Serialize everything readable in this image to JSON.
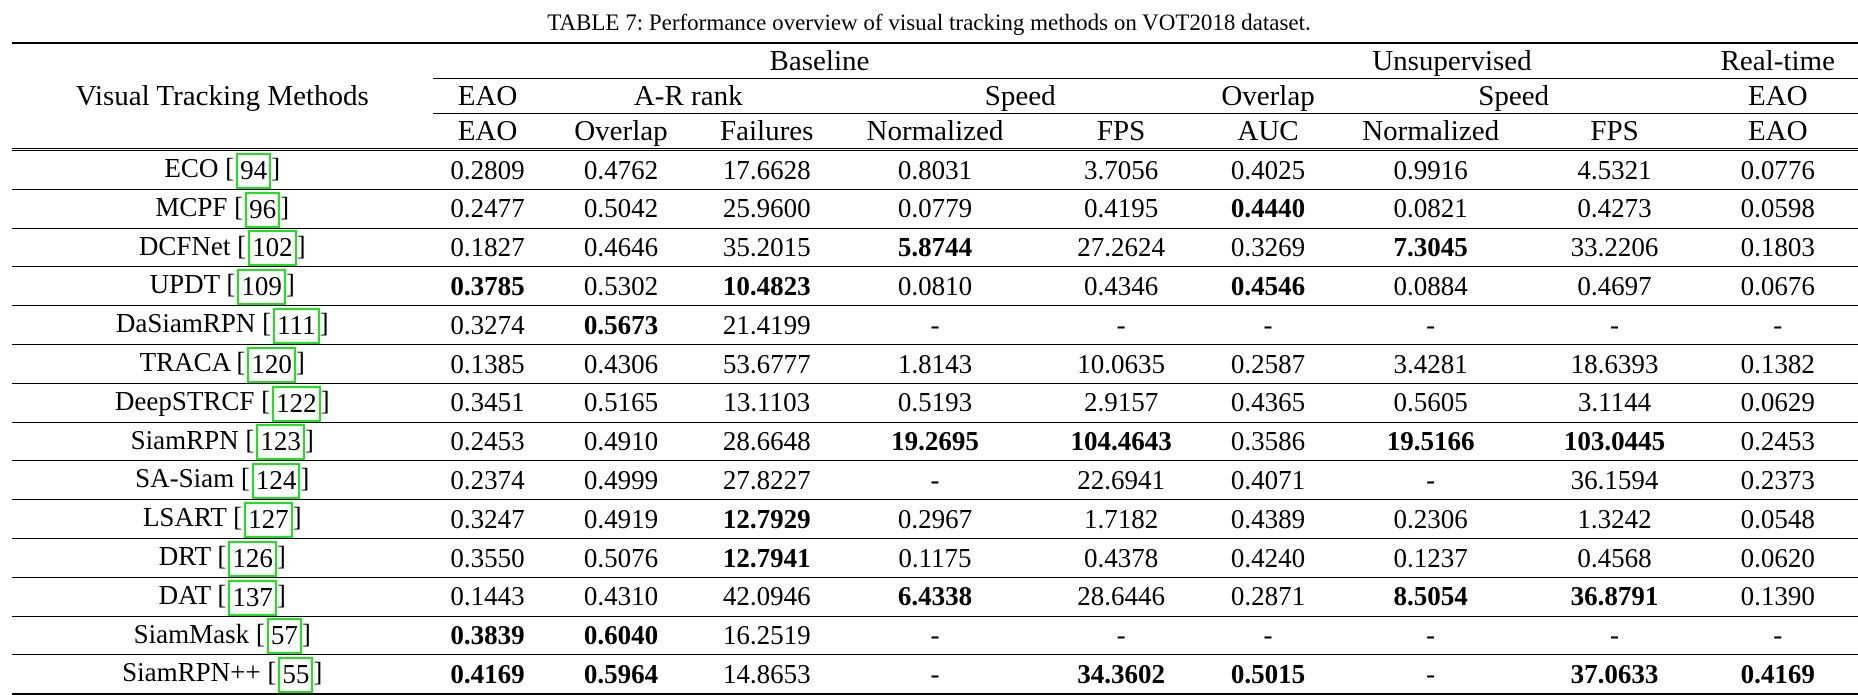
{
  "caption": "TABLE 7: Performance overview of visual tracking methods on VOT2018 dataset.",
  "header": {
    "method_col": "Visual Tracking Methods",
    "groups": {
      "baseline": "Baseline",
      "unsupervised": "Unsupervised",
      "realtime": "Real-time"
    },
    "sub": {
      "eao": "EAO",
      "ar_rank": "A-R rank",
      "speed": "Speed",
      "overlap": "Overlap",
      "speed_u": "Speed",
      "eao_rt": "EAO"
    },
    "cols": [
      "EAO",
      "Overlap",
      "Failures",
      "Normalized",
      "FPS",
      "AUC",
      "Normalized",
      "FPS",
      "EAO"
    ]
  },
  "rows": [
    {
      "name": "ECO",
      "ref": "94",
      "vals": [
        "0.2809",
        "0.4762",
        "17.6628",
        "0.8031",
        "3.7056",
        "0.4025",
        "0.9916",
        "4.5321",
        "0.0776"
      ],
      "bold": []
    },
    {
      "name": "MCPF",
      "ref": "96",
      "vals": [
        "0.2477",
        "0.5042",
        "25.9600",
        "0.0779",
        "0.4195",
        "0.4440",
        "0.0821",
        "0.4273",
        "0.0598"
      ],
      "bold": [
        5
      ]
    },
    {
      "name": "DCFNet",
      "ref": "102",
      "vals": [
        "0.1827",
        "0.4646",
        "35.2015",
        "5.8744",
        "27.2624",
        "0.3269",
        "7.3045",
        "33.2206",
        "0.1803"
      ],
      "bold": [
        3,
        6
      ]
    },
    {
      "name": "UPDT",
      "ref": "109",
      "vals": [
        "0.3785",
        "0.5302",
        "10.4823",
        "0.0810",
        "0.4346",
        "0.4546",
        "0.0884",
        "0.4697",
        "0.0676"
      ],
      "bold": [
        0,
        2,
        5
      ]
    },
    {
      "name": "DaSiamRPN",
      "ref": "111",
      "vals": [
        "0.3274",
        "0.5673",
        "21.4199",
        "-",
        "-",
        "-",
        "-",
        "-",
        "-"
      ],
      "bold": [
        1
      ]
    },
    {
      "name": "TRACA",
      "ref": "120",
      "vals": [
        "0.1385",
        "0.4306",
        "53.6777",
        "1.8143",
        "10.0635",
        "0.2587",
        "3.4281",
        "18.6393",
        "0.1382"
      ],
      "bold": []
    },
    {
      "name": "DeepSTRCF",
      "ref": "122",
      "vals": [
        "0.3451",
        "0.5165",
        "13.1103",
        "0.5193",
        "2.9157",
        "0.4365",
        "0.5605",
        "3.1144",
        "0.0629"
      ],
      "bold": []
    },
    {
      "name": "SiamRPN",
      "ref": "123",
      "vals": [
        "0.2453",
        "0.4910",
        "28.6648",
        "19.2695",
        "104.4643",
        "0.3586",
        "19.5166",
        "103.0445",
        "0.2453"
      ],
      "bold": [
        3,
        4,
        6,
        7
      ]
    },
    {
      "name": "SA-Siam",
      "ref": "124",
      "vals": [
        "0.2374",
        "0.4999",
        "27.8227",
        "-",
        "22.6941",
        "0.4071",
        "-",
        "36.1594",
        "0.2373"
      ],
      "bold": []
    },
    {
      "name": "LSART",
      "ref": "127",
      "vals": [
        "0.3247",
        "0.4919",
        "12.7929",
        "0.2967",
        "1.7182",
        "0.4389",
        "0.2306",
        "1.3242",
        "0.0548"
      ],
      "bold": [
        2
      ]
    },
    {
      "name": "DRT",
      "ref": "126",
      "vals": [
        "0.3550",
        "0.5076",
        "12.7941",
        "0.1175",
        "0.4378",
        "0.4240",
        "0.1237",
        "0.4568",
        "0.0620"
      ],
      "bold": [
        2
      ]
    },
    {
      "name": "DAT",
      "ref": "137",
      "vals": [
        "0.1443",
        "0.4310",
        "42.0946",
        "6.4338",
        "28.6446",
        "0.2871",
        "8.5054",
        "36.8791",
        "0.1390"
      ],
      "bold": [
        3,
        6,
        7
      ]
    },
    {
      "name": "SiamMask",
      "ref": "57",
      "vals": [
        "0.3839",
        "0.6040",
        "16.2519",
        "-",
        "-",
        "-",
        "-",
        "-",
        "-"
      ],
      "bold": [
        0,
        1
      ]
    },
    {
      "name": "SiamRPN++",
      "ref": "55",
      "vals": [
        "0.4169",
        "0.5964",
        "14.8653",
        "-",
        "34.3602",
        "0.5015",
        "-",
        "37.0633",
        "0.4169"
      ],
      "bold": [
        0,
        1,
        4,
        5,
        7,
        8
      ]
    }
  ]
}
